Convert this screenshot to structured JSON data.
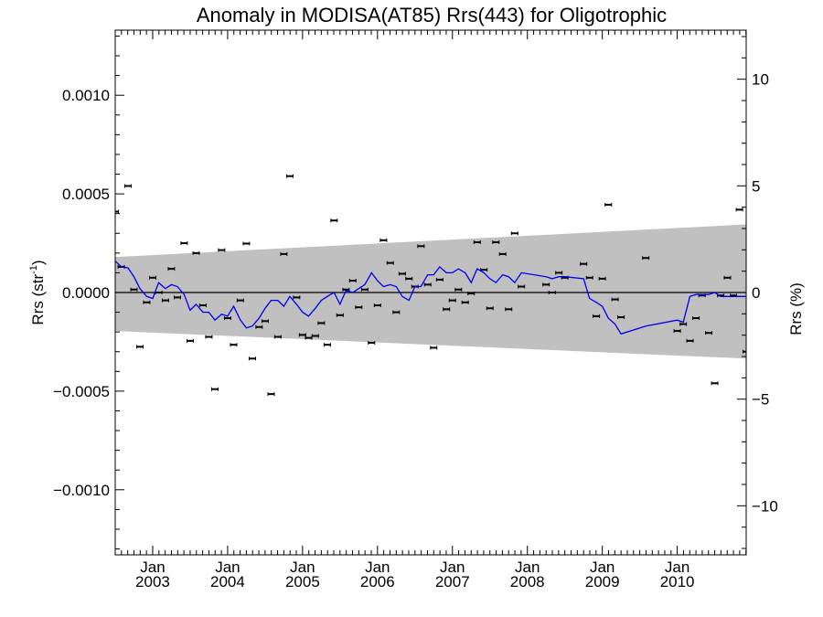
{
  "chart_data": {
    "type": "scatter",
    "title": "Anomaly in MODISA(AT85) Rrs(443) for Oligotrophic",
    "ylabel_left": "Rrs (str",
    "ylabel_left_sup": "-1",
    "ylabel_left_close": ")",
    "ylabel_right": "Rrs (%)",
    "xlim": [
      2002.5,
      2010.92
    ],
    "ylim_left": [
      -0.00133,
      0.00133
    ],
    "ylim_right": [
      -12.3,
      12.3
    ],
    "grid": false,
    "x_ticks": [
      {
        "value": 2003.0,
        "month": "Jan",
        "year": "2003"
      },
      {
        "value": 2004.0,
        "month": "Jan",
        "year": "2004"
      },
      {
        "value": 2005.0,
        "month": "Jan",
        "year": "2005"
      },
      {
        "value": 2006.0,
        "month": "Jan",
        "year": "2006"
      },
      {
        "value": 2007.0,
        "month": "Jan",
        "year": "2007"
      },
      {
        "value": 2008.0,
        "month": "Jan",
        "year": "2008"
      },
      {
        "value": 2009.0,
        "month": "Jan",
        "year": "2009"
      },
      {
        "value": 2010.0,
        "month": "Jan",
        "year": "2010"
      }
    ],
    "y_ticks_left": [
      {
        "value": 0.001,
        "label": "0.0010"
      },
      {
        "value": 0.0005,
        "label": "0.0005"
      },
      {
        "value": 0.0,
        "label": "0.0000"
      },
      {
        "value": -0.0005,
        "label": "−0.0005"
      },
      {
        "value": -0.001,
        "label": "−0.0010"
      }
    ],
    "y_ticks_right": [
      {
        "value": 10,
        "label": "10"
      },
      {
        "value": 5,
        "label": "5"
      },
      {
        "value": 0,
        "label": "0"
      },
      {
        "value": -5,
        "label": "−5"
      },
      {
        "value": -10,
        "label": "−10"
      }
    ],
    "band": {
      "x": [
        2002.5,
        2010.92
      ],
      "upper": [
        0.00018,
        0.000345
      ],
      "lower": [
        -0.000195,
        -0.000335
      ],
      "color": "#c0c0c0"
    },
    "zero_line": 0.0,
    "series": [
      {
        "kind": "points",
        "color": "#000000",
        "x": [
          2002.5,
          2002.58,
          2002.67,
          2002.75,
          2002.83,
          2002.92,
          2003.0,
          2003.08,
          2003.17,
          2003.25,
          2003.33,
          2003.42,
          2003.5,
          2003.58,
          2003.67,
          2003.75,
          2003.83,
          2003.92,
          2004.0,
          2004.08,
          2004.17,
          2004.25,
          2004.33,
          2004.42,
          2004.5,
          2004.58,
          2004.67,
          2004.75,
          2004.83,
          2004.92,
          2005.0,
          2005.08,
          2005.17,
          2005.25,
          2005.33,
          2005.42,
          2005.5,
          2005.58,
          2005.67,
          2005.75,
          2005.83,
          2005.92,
          2006.0,
          2006.08,
          2006.17,
          2006.25,
          2006.33,
          2006.42,
          2006.5,
          2006.58,
          2006.67,
          2006.75,
          2006.83,
          2006.92,
          2007.0,
          2007.08,
          2007.17,
          2007.25,
          2007.33,
          2007.42,
          2007.5,
          2007.58,
          2007.67,
          2007.75,
          2007.83,
          2007.92,
          2008.25,
          2008.33,
          2008.42,
          2008.5,
          2008.75,
          2008.83,
          2008.92,
          2009.0,
          2009.08,
          2009.17,
          2009.25,
          2009.58,
          2010.0,
          2010.08,
          2010.17,
          2010.25,
          2010.33,
          2010.42,
          2010.5,
          2010.58,
          2010.67,
          2010.75,
          2010.83,
          2010.92
        ],
        "y": [
          0.00041,
          0.00013,
          0.00054,
          1.5e-05,
          -0.000275,
          -5e-05,
          7.5e-05,
          0.0,
          -4e-05,
          0.00012,
          -2.5e-05,
          0.00025,
          -0.000245,
          0.0002,
          -6.5e-05,
          -0.000225,
          -0.00049,
          0.000215,
          -0.00013,
          -0.000265,
          -4e-05,
          0.000248,
          -0.000335,
          -0.000175,
          -0.000145,
          -0.000515,
          -0.000225,
          0.000195,
          0.00059,
          -2.5e-05,
          -0.000215,
          -0.00023,
          -0.00022,
          -0.000155,
          -0.000265,
          0.000365,
          -0.000115,
          1.5e-05,
          6e-05,
          -7.5e-05,
          1.5e-05,
          -0.000255,
          -6.5e-05,
          0.000265,
          0.00015,
          -0.0001,
          9.5e-05,
          7e-05,
          3e-05,
          0.000235,
          4e-05,
          -0.00028,
          6.5e-05,
          -8.5e-05,
          -4e-05,
          1.5e-05,
          -5e-05,
          -5e-06,
          0.000255,
          0.000115,
          -8e-05,
          0.000255,
          0.000195,
          -8.5e-05,
          0.0003,
          3e-05,
          4e-05,
          0.0,
          0.0001,
          7.5e-05,
          0.000145,
          7.5e-05,
          -0.00012,
          7e-05,
          0.000445,
          -3.5e-05,
          -0.000125,
          0.000175,
          -0.000195,
          -0.00016,
          -0.000245,
          -0.00013,
          -1.5e-05,
          -0.000205,
          -0.00046,
          -1.5e-05,
          7.5e-05,
          -1.5e-05,
          0.00042,
          -0.0003
        ]
      },
      {
        "kind": "line",
        "color": "#0000ee",
        "x": [
          2002.5,
          2002.58,
          2002.67,
          2002.75,
          2002.83,
          2002.92,
          2003.0,
          2003.08,
          2003.17,
          2003.25,
          2003.33,
          2003.42,
          2003.5,
          2003.58,
          2003.67,
          2003.75,
          2003.83,
          2003.92,
          2004.0,
          2004.08,
          2004.17,
          2004.25,
          2004.33,
          2004.42,
          2004.5,
          2004.58,
          2004.67,
          2004.75,
          2004.83,
          2004.92,
          2005.0,
          2005.08,
          2005.17,
          2005.25,
          2005.33,
          2005.42,
          2005.5,
          2005.58,
          2005.67,
          2005.75,
          2005.83,
          2005.92,
          2006.0,
          2006.08,
          2006.17,
          2006.25,
          2006.33,
          2006.42,
          2006.5,
          2006.58,
          2006.67,
          2006.75,
          2006.83,
          2006.92,
          2007.0,
          2007.08,
          2007.17,
          2007.25,
          2007.33,
          2007.42,
          2007.5,
          2007.58,
          2007.67,
          2007.75,
          2007.83,
          2007.92,
          2008.25,
          2008.33,
          2008.42,
          2008.5,
          2008.75,
          2008.83,
          2008.92,
          2009.0,
          2009.08,
          2009.17,
          2009.25,
          2009.58,
          2010.0,
          2010.08,
          2010.17,
          2010.25,
          2010.33,
          2010.42,
          2010.5,
          2010.58,
          2010.67,
          2010.75,
          2010.83,
          2010.92
        ],
        "y": [
          0.00016,
          0.00013,
          0.000125,
          8e-05,
          2e-05,
          -2e-05,
          -3e-05,
          5e-05,
          2e-05,
          4e-05,
          3e-05,
          -1e-05,
          -9e-05,
          -6e-05,
          -0.0001,
          -0.0001,
          -0.00014,
          -0.00011,
          -0.00012,
          -7e-05,
          -0.00014,
          -0.00018,
          -0.00017,
          -0.00013,
          -8e-05,
          -4e-05,
          -4e-05,
          -7e-05,
          -2e-05,
          -6e-05,
          -0.0001,
          -0.00012,
          -8e-05,
          -4e-05,
          -2e-05,
          0.0,
          -6e-05,
          1e-05,
          0.0,
          2e-05,
          4e-05,
          0.0001,
          6e-05,
          3e-05,
          4e-05,
          3e-05,
          -2e-05,
          -4e-05,
          3e-05,
          3e-05,
          9e-05,
          9e-05,
          0.00013,
          0.0001,
          0.0001,
          0.00012,
          0.0001,
          5e-05,
          0.00012,
          0.0001,
          7e-05,
          5e-05,
          9e-05,
          8e-05,
          5e-05,
          0.0001,
          8e-05,
          7e-05,
          8e-05,
          8e-05,
          7e-05,
          -3e-05,
          -5e-05,
          -7e-05,
          -0.00013,
          -0.00016,
          -0.00021,
          -0.00017,
          -0.00014,
          -0.00015,
          -2e-05,
          -1e-05,
          -1e-05,
          -1e-05,
          0.0,
          -2e-05,
          -2e-05,
          -2e-05,
          -2e-05,
          -2e-05
        ]
      }
    ]
  }
}
